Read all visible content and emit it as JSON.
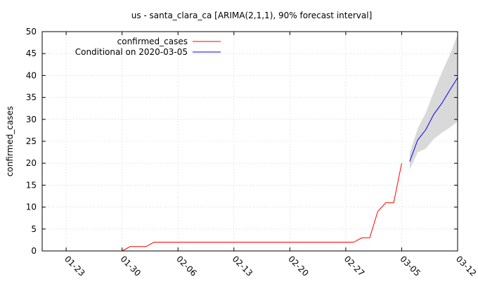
{
  "chart_data": {
    "type": "line",
    "title": "us - santa_clara_ca [ARIMA(2,1,1), 90% forecast interval]",
    "xlabel": "",
    "ylabel": "confirmed_cases",
    "x_ticks": [
      "01-23",
      "01-30",
      "02-06",
      "02-13",
      "02-20",
      "02-27",
      "03-05",
      "03-12"
    ],
    "xlim": [
      "2020-01-20",
      "2020-03-12"
    ],
    "ylim": [
      0,
      50
    ],
    "y_ticks": [
      0,
      5,
      10,
      15,
      20,
      25,
      30,
      35,
      40,
      45,
      50
    ],
    "grid": true,
    "legend_position": "top-left",
    "series": [
      {
        "name": "confirmed_cases",
        "color": "#ff0000",
        "points": [
          [
            "2020-01-30",
            0
          ],
          [
            "2020-01-31",
            1
          ],
          [
            "2020-02-01",
            1
          ],
          [
            "2020-02-02",
            1
          ],
          [
            "2020-02-03",
            2
          ],
          [
            "2020-02-04",
            2
          ],
          [
            "2020-02-05",
            2
          ],
          [
            "2020-02-06",
            2
          ],
          [
            "2020-02-07",
            2
          ],
          [
            "2020-02-08",
            2
          ],
          [
            "2020-02-09",
            2
          ],
          [
            "2020-02-10",
            2
          ],
          [
            "2020-02-11",
            2
          ],
          [
            "2020-02-12",
            2
          ],
          [
            "2020-02-13",
            2
          ],
          [
            "2020-02-14",
            2
          ],
          [
            "2020-02-15",
            2
          ],
          [
            "2020-02-16",
            2
          ],
          [
            "2020-02-17",
            2
          ],
          [
            "2020-02-18",
            2
          ],
          [
            "2020-02-19",
            2
          ],
          [
            "2020-02-20",
            2
          ],
          [
            "2020-02-21",
            2
          ],
          [
            "2020-02-22",
            2
          ],
          [
            "2020-02-23",
            2
          ],
          [
            "2020-02-24",
            2
          ],
          [
            "2020-02-25",
            2
          ],
          [
            "2020-02-26",
            2
          ],
          [
            "2020-02-27",
            2
          ],
          [
            "2020-02-28",
            2
          ],
          [
            "2020-02-29",
            3
          ],
          [
            "2020-03-01",
            3
          ],
          [
            "2020-03-02",
            9
          ],
          [
            "2020-03-03",
            11
          ],
          [
            "2020-03-04",
            11
          ],
          [
            "2020-03-05",
            20
          ]
        ]
      },
      {
        "name": "Conditional on 2020-03-05",
        "color": "#0000ff",
        "points": [
          [
            "2020-03-06",
            20.4
          ],
          [
            "2020-03-07",
            25.3
          ],
          [
            "2020-03-08",
            27.6
          ],
          [
            "2020-03-09",
            31.1
          ],
          [
            "2020-03-10",
            33.6
          ],
          [
            "2020-03-11",
            36.6
          ],
          [
            "2020-03-12",
            39.5
          ]
        ]
      }
    ],
    "forecast_interval": {
      "color": "#d9d9d9",
      "x": [
        "2020-03-06",
        "2020-03-07",
        "2020-03-08",
        "2020-03-09",
        "2020-03-10",
        "2020-03-11",
        "2020-03-12"
      ],
      "upper": [
        22.3,
        27.9,
        31.4,
        36.2,
        40.6,
        44.6,
        49.3
      ],
      "lower": [
        18.5,
        22.5,
        23.3,
        25.5,
        26.9,
        28.1,
        29.5
      ]
    }
  }
}
